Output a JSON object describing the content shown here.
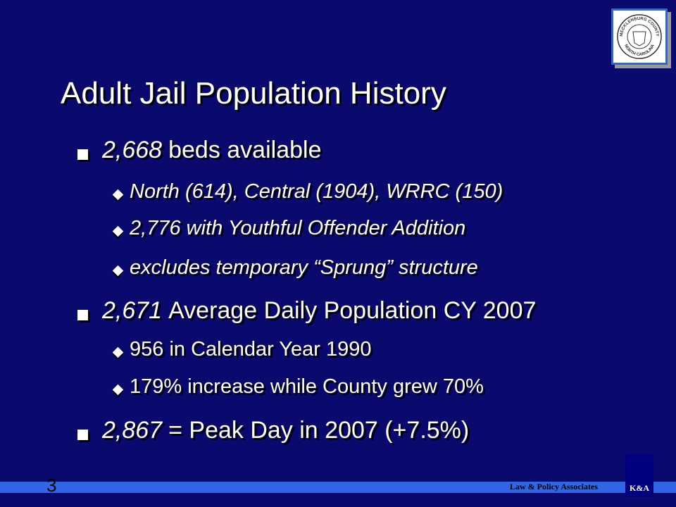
{
  "seal": {
    "top_text": "MECKLENBURG COUNTY",
    "bottom_text": "NORTH CAROLINA"
  },
  "title": "Adult Jail Population History",
  "bullets": [
    {
      "lead": "2,668",
      "text": "beds available",
      "subs": [
        {
          "text": "North (614), Central (1904), WRRC (150)",
          "italic": true
        },
        {
          "text": "2,776 with Youthful Offender Addition",
          "italic": true
        },
        {
          "text": "excludes temporary “Sprung” structure",
          "italic": true
        }
      ]
    },
    {
      "lead": "2,671",
      "text": "Average Daily Population CY 2007",
      "subs": [
        {
          "text": "956 in Calendar Year 1990",
          "italic": false
        },
        {
          "text": "179% increase while County grew 70%",
          "italic": false
        }
      ]
    },
    {
      "lead": "2,867",
      "text": "= Peak Day in 2007 (+7.5%)",
      "subs": []
    }
  ],
  "footer": {
    "page_number": "3",
    "organization": "Law & Policy Associates",
    "logo": "K&A"
  }
}
